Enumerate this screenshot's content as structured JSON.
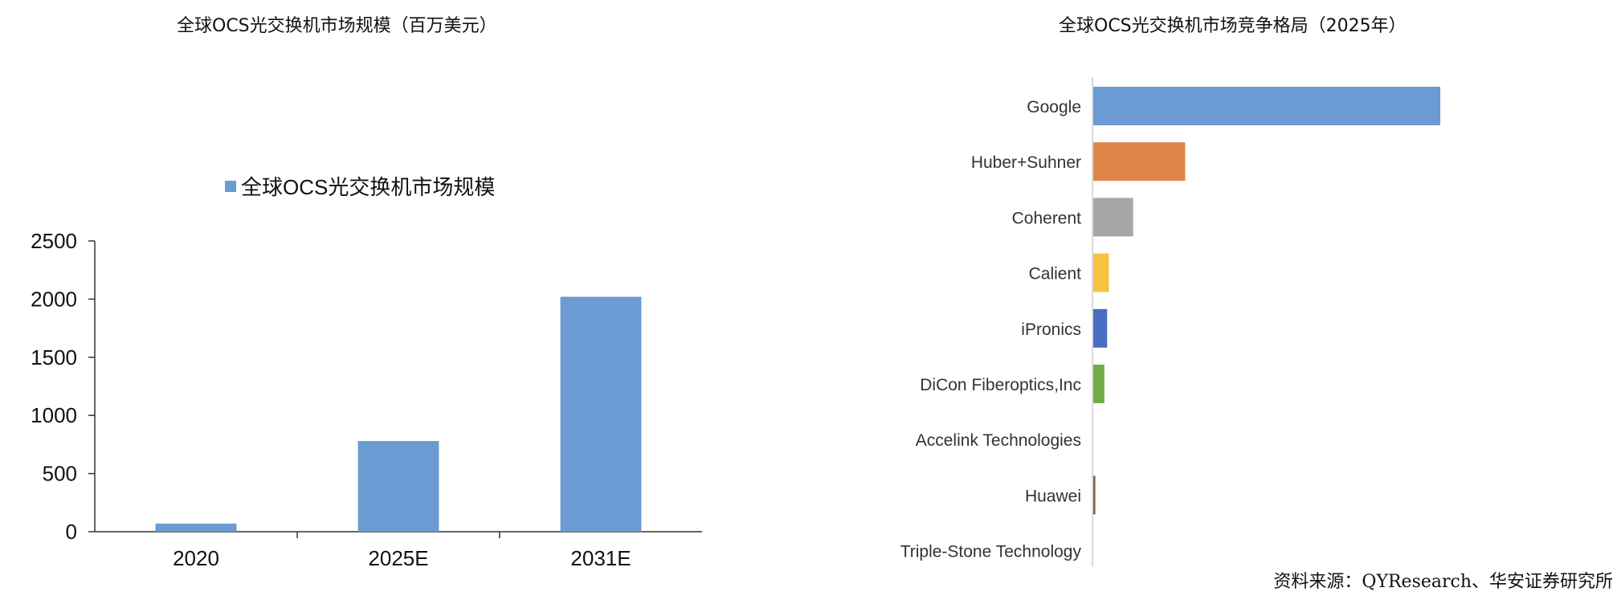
{
  "left_title": "全球OCS光交换机市场规模（百万美元）",
  "right_title": "全球OCS光交换机市场竞争格局（2025年）",
  "source": "资料来源：QYResearch、华安证券研究所",
  "chart_data": [
    {
      "type": "bar",
      "title": "全球OCS光交换机市场规模（百万美元）",
      "legend": "全球OCS光交换机市场规模",
      "legend_position": "top",
      "categories": [
        "2020",
        "2025E",
        "2031E"
      ],
      "values": [
        70,
        780,
        2020
      ],
      "yticks": [
        "0",
        "500",
        "1000",
        "1500",
        "2000",
        "2500"
      ],
      "ylim": [
        0,
        2500
      ],
      "color": "#6b9bd2",
      "grid": false
    },
    {
      "type": "bar",
      "orientation": "horizontal",
      "title": "全球OCS光交换机市场竞争格局（2025年）",
      "categories": [
        "Google",
        "Huber+Suhner",
        "Coherent",
        "Calient",
        "iPronics",
        "DiCon Fiberoptics,Inc",
        "Accelink Technologies",
        "Huawei",
        "Triple-Stone Technology"
      ],
      "values": [
        100,
        26.5,
        11.5,
        4.5,
        4,
        3.2,
        0,
        0.6,
        0
      ],
      "xlim": [
        0,
        100
      ],
      "colors": [
        "#6b9bd2",
        "#e0854a",
        "#a6a6a6",
        "#f5c242",
        "#4a6cc2",
        "#6fad47",
        "#2a4b86",
        "#8c5a3c",
        "#5a6270"
      ],
      "grid": false
    }
  ]
}
